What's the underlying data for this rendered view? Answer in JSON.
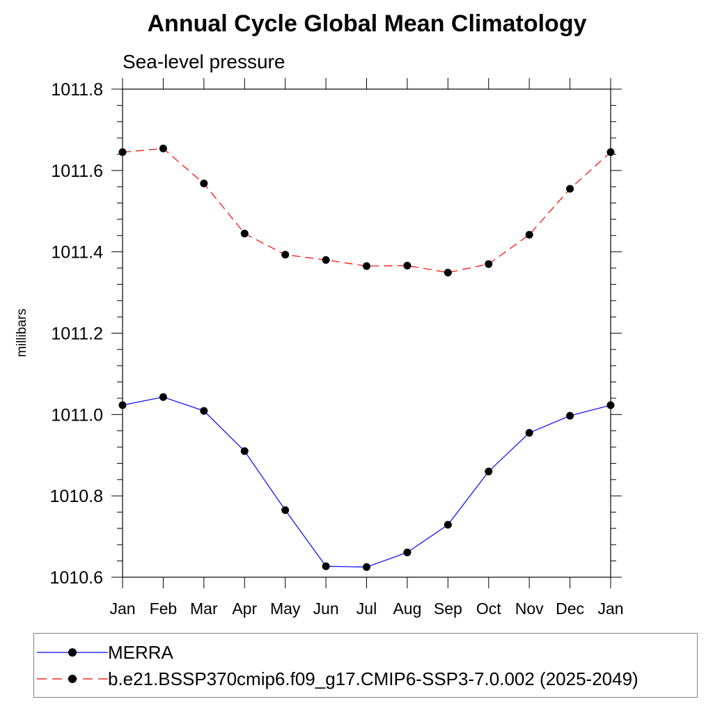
{
  "chart_data": {
    "type": "line",
    "title": "Annual Cycle Global Mean Climatology",
    "subtitle": "Sea-level pressure",
    "ylabel": "millibars",
    "xlabel": "",
    "categories": [
      "Jan",
      "Feb",
      "Mar",
      "Apr",
      "May",
      "Jun",
      "Jul",
      "Aug",
      "Sep",
      "Oct",
      "Nov",
      "Dec",
      "Jan"
    ],
    "ylim": [
      1010.6,
      1011.8
    ],
    "yticks": [
      1010.6,
      1010.8,
      1011.0,
      1011.2,
      1011.4,
      1011.6,
      1011.8
    ],
    "ytick_labels": [
      "1010.6",
      "1010.8",
      "1011.0",
      "1011.2",
      "1011.4",
      "1011.6",
      "1011.8"
    ],
    "grid": false,
    "legend_position": "bottom",
    "series": [
      {
        "name": "MERRA",
        "color": "#0000ff",
        "line_style": "solid",
        "marker": "filled-circle",
        "values": [
          1011.023,
          1011.043,
          1011.009,
          1010.91,
          1010.765,
          1010.627,
          1010.625,
          1010.661,
          1010.729,
          1010.86,
          1010.955,
          1010.997,
          1011.023
        ]
      },
      {
        "name": "b.e21.BSSP370cmip6.f09_g17.CMIP6-SSP3-7.0.002 (2025-2049)",
        "color": "#ff0000",
        "line_style": "dashed",
        "marker": "filled-circle",
        "values": [
          1011.645,
          1011.654,
          1011.568,
          1011.445,
          1011.393,
          1011.38,
          1011.365,
          1011.366,
          1011.349,
          1011.37,
          1011.442,
          1011.555,
          1011.645
        ]
      }
    ]
  }
}
